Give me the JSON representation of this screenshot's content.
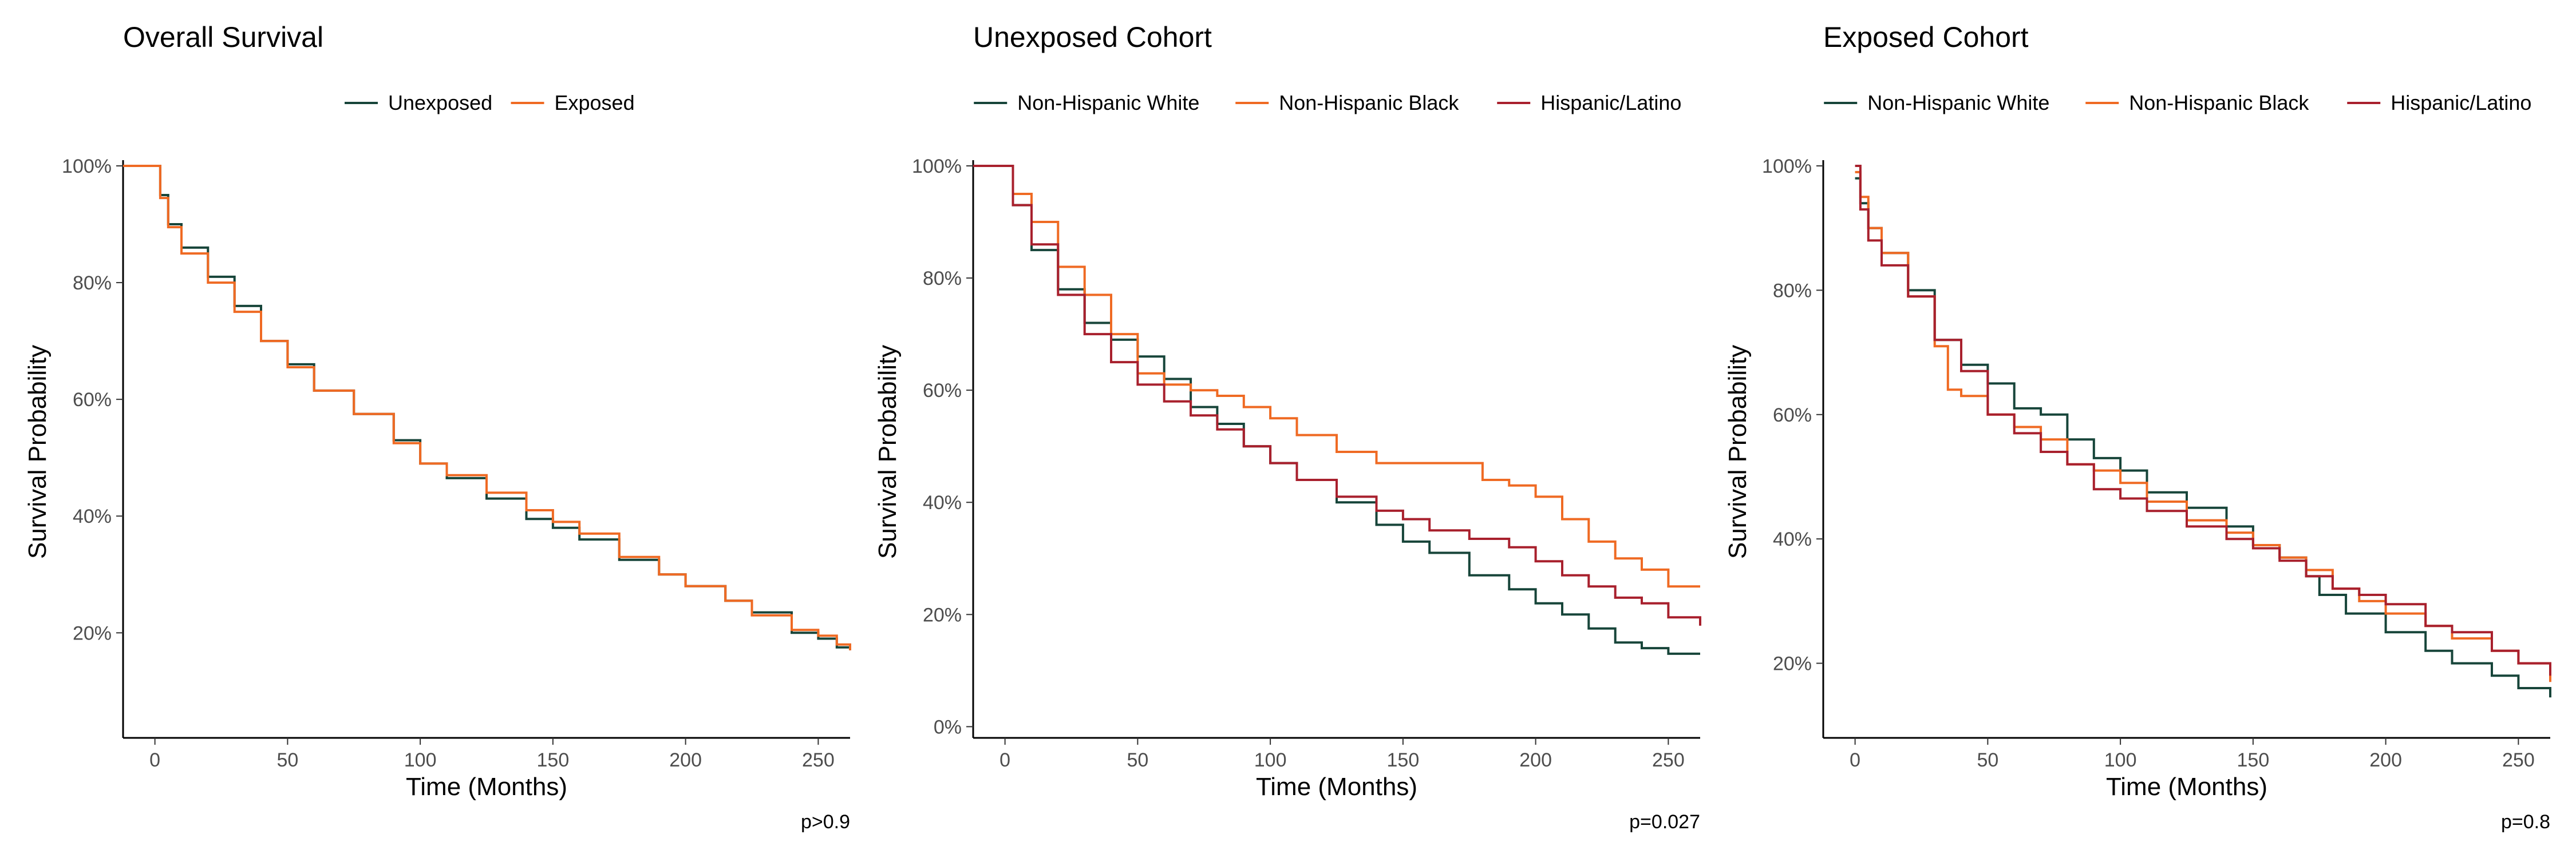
{
  "colors": {
    "dark_green": "#17453a",
    "orange": "#ef6a23",
    "dark_red": "#a8202d"
  },
  "chart_data": [
    {
      "type": "line",
      "title": "Overall Survival",
      "xlabel": "Time (Months)",
      "ylabel": "Survival Probability",
      "xlim": [
        -12,
        262
      ],
      "ylim": [
        0.02,
        1.0
      ],
      "xticks": [
        0,
        50,
        100,
        150,
        200,
        250
      ],
      "yticks": [
        0.2,
        0.4,
        0.6,
        0.8,
        1.0
      ],
      "ytick_labels": [
        "20%",
        "40%",
        "60%",
        "80%",
        "100%"
      ],
      "legend_position": "top",
      "pvalue": "p>0.9",
      "series": [
        {
          "name": "Unexposed",
          "color": "#17453a",
          "points": [
            [
              -12,
              1.0
            ],
            [
              0,
              1.0
            ],
            [
              2,
              0.95
            ],
            [
              5,
              0.9
            ],
            [
              10,
              0.86
            ],
            [
              20,
              0.81
            ],
            [
              30,
              0.76
            ],
            [
              40,
              0.7
            ],
            [
              50,
              0.66
            ],
            [
              60,
              0.615
            ],
            [
              75,
              0.575
            ],
            [
              90,
              0.53
            ],
            [
              100,
              0.49
            ],
            [
              110,
              0.465
            ],
            [
              125,
              0.43
            ],
            [
              140,
              0.395
            ],
            [
              150,
              0.38
            ],
            [
              160,
              0.36
            ],
            [
              175,
              0.325
            ],
            [
              190,
              0.3
            ],
            [
              200,
              0.28
            ],
            [
              215,
              0.255
            ],
            [
              225,
              0.235
            ],
            [
              240,
              0.2
            ],
            [
              250,
              0.19
            ],
            [
              257,
              0.175
            ],
            [
              262,
              0.17
            ]
          ]
        },
        {
          "name": "Exposed",
          "color": "#ef6a23",
          "points": [
            [
              -12,
              1.0
            ],
            [
              0,
              1.0
            ],
            [
              2,
              0.945
            ],
            [
              5,
              0.895
            ],
            [
              10,
              0.85
            ],
            [
              20,
              0.8
            ],
            [
              30,
              0.75
            ],
            [
              40,
              0.7
            ],
            [
              50,
              0.655
            ],
            [
              60,
              0.615
            ],
            [
              75,
              0.575
            ],
            [
              90,
              0.525
            ],
            [
              100,
              0.49
            ],
            [
              110,
              0.47
            ],
            [
              125,
              0.44
            ],
            [
              140,
              0.41
            ],
            [
              150,
              0.39
            ],
            [
              160,
              0.37
            ],
            [
              175,
              0.33
            ],
            [
              190,
              0.3
            ],
            [
              200,
              0.28
            ],
            [
              215,
              0.255
            ],
            [
              225,
              0.23
            ],
            [
              240,
              0.205
            ],
            [
              250,
              0.195
            ],
            [
              257,
              0.18
            ],
            [
              262,
              0.17
            ]
          ]
        }
      ]
    },
    {
      "type": "line",
      "title": "Unexposed Cohort",
      "xlabel": "Time (Months)",
      "ylabel": "Survival Probability",
      "xlim": [
        -12,
        262
      ],
      "ylim": [
        -0.02,
        1.0
      ],
      "xticks": [
        0,
        50,
        100,
        150,
        200,
        250
      ],
      "yticks": [
        0.0,
        0.2,
        0.4,
        0.6,
        0.8,
        1.0
      ],
      "ytick_labels": [
        "0%",
        "20%",
        "40%",
        "60%",
        "80%",
        "100%"
      ],
      "legend_position": "top",
      "pvalue": "p=0.027",
      "series": [
        {
          "name": "Non-Hispanic White",
          "color": "#17453a",
          "points": [
            [
              -12,
              1.0
            ],
            [
              0,
              1.0
            ],
            [
              3,
              0.93
            ],
            [
              10,
              0.85
            ],
            [
              20,
              0.78
            ],
            [
              30,
              0.72
            ],
            [
              40,
              0.69
            ],
            [
              50,
              0.66
            ],
            [
              60,
              0.62
            ],
            [
              70,
              0.57
            ],
            [
              80,
              0.54
            ],
            [
              90,
              0.5
            ],
            [
              100,
              0.47
            ],
            [
              110,
              0.44
            ],
            [
              125,
              0.4
            ],
            [
              140,
              0.36
            ],
            [
              150,
              0.33
            ],
            [
              160,
              0.31
            ],
            [
              175,
              0.27
            ],
            [
              190,
              0.245
            ],
            [
              200,
              0.22
            ],
            [
              210,
              0.2
            ],
            [
              220,
              0.175
            ],
            [
              230,
              0.15
            ],
            [
              240,
              0.14
            ],
            [
              250,
              0.13
            ],
            [
              262,
              0.13
            ]
          ]
        },
        {
          "name": "Non-Hispanic Black",
          "color": "#ef6a23",
          "points": [
            [
              -12,
              1.0
            ],
            [
              0,
              1.0
            ],
            [
              3,
              0.95
            ],
            [
              10,
              0.9
            ],
            [
              20,
              0.82
            ],
            [
              30,
              0.77
            ],
            [
              40,
              0.7
            ],
            [
              50,
              0.63
            ],
            [
              60,
              0.61
            ],
            [
              70,
              0.6
            ],
            [
              80,
              0.59
            ],
            [
              90,
              0.57
            ],
            [
              100,
              0.55
            ],
            [
              110,
              0.52
            ],
            [
              125,
              0.49
            ],
            [
              140,
              0.47
            ],
            [
              150,
              0.47
            ],
            [
              160,
              0.47
            ],
            [
              170,
              0.47
            ],
            [
              180,
              0.44
            ],
            [
              190,
              0.43
            ],
            [
              200,
              0.41
            ],
            [
              210,
              0.37
            ],
            [
              220,
              0.33
            ],
            [
              230,
              0.3
            ],
            [
              240,
              0.28
            ],
            [
              250,
              0.25
            ],
            [
              262,
              0.25
            ]
          ]
        },
        {
          "name": "Hispanic/Latino",
          "color": "#a8202d",
          "points": [
            [
              -12,
              1.0
            ],
            [
              0,
              1.0
            ],
            [
              3,
              0.93
            ],
            [
              10,
              0.86
            ],
            [
              20,
              0.77
            ],
            [
              30,
              0.7
            ],
            [
              40,
              0.65
            ],
            [
              50,
              0.61
            ],
            [
              60,
              0.58
            ],
            [
              70,
              0.555
            ],
            [
              80,
              0.53
            ],
            [
              90,
              0.5
            ],
            [
              100,
              0.47
            ],
            [
              110,
              0.44
            ],
            [
              125,
              0.41
            ],
            [
              140,
              0.385
            ],
            [
              150,
              0.37
            ],
            [
              160,
              0.35
            ],
            [
              175,
              0.335
            ],
            [
              190,
              0.32
            ],
            [
              200,
              0.295
            ],
            [
              210,
              0.27
            ],
            [
              220,
              0.25
            ],
            [
              230,
              0.23
            ],
            [
              240,
              0.22
            ],
            [
              250,
              0.195
            ],
            [
              262,
              0.18
            ]
          ]
        }
      ]
    },
    {
      "type": "line",
      "title": "Exposed Cohort",
      "xlabel": "Time (Months)",
      "ylabel": "Survival Probability",
      "xlim": [
        -12,
        262
      ],
      "ylim": [
        0.08,
        1.0
      ],
      "xticks": [
        0,
        50,
        100,
        150,
        200,
        250
      ],
      "yticks": [
        0.2,
        0.4,
        0.6,
        0.8,
        1.0
      ],
      "ytick_labels": [
        "20%",
        "40%",
        "60%",
        "80%",
        "100%"
      ],
      "legend_position": "top",
      "pvalue": "p=0.8",
      "series": [
        {
          "name": "Non-Hispanic White",
          "color": "#17453a",
          "points": [
            [
              0,
              0.98
            ],
            [
              2,
              0.94
            ],
            [
              5,
              0.9
            ],
            [
              10,
              0.86
            ],
            [
              20,
              0.8
            ],
            [
              30,
              0.72
            ],
            [
              40,
              0.68
            ],
            [
              50,
              0.65
            ],
            [
              60,
              0.61
            ],
            [
              70,
              0.6
            ],
            [
              80,
              0.56
            ],
            [
              90,
              0.53
            ],
            [
              100,
              0.51
            ],
            [
              110,
              0.475
            ],
            [
              125,
              0.45
            ],
            [
              140,
              0.42
            ],
            [
              150,
              0.39
            ],
            [
              160,
              0.37
            ],
            [
              170,
              0.34
            ],
            [
              175,
              0.31
            ],
            [
              185,
              0.28
            ],
            [
              200,
              0.25
            ],
            [
              215,
              0.22
            ],
            [
              225,
              0.2
            ],
            [
              240,
              0.18
            ],
            [
              250,
              0.16
            ],
            [
              262,
              0.145
            ]
          ]
        },
        {
          "name": "Non-Hispanic Black",
          "color": "#ef6a23",
          "points": [
            [
              0,
              0.99
            ],
            [
              2,
              0.95
            ],
            [
              5,
              0.9
            ],
            [
              10,
              0.86
            ],
            [
              20,
              0.79
            ],
            [
              30,
              0.71
            ],
            [
              35,
              0.64
            ],
            [
              40,
              0.63
            ],
            [
              50,
              0.6
            ],
            [
              60,
              0.58
            ],
            [
              70,
              0.56
            ],
            [
              80,
              0.52
            ],
            [
              90,
              0.51
            ],
            [
              100,
              0.49
            ],
            [
              110,
              0.46
            ],
            [
              125,
              0.43
            ],
            [
              140,
              0.41
            ],
            [
              150,
              0.39
            ],
            [
              160,
              0.37
            ],
            [
              170,
              0.35
            ],
            [
              180,
              0.32
            ],
            [
              190,
              0.3
            ],
            [
              200,
              0.28
            ],
            [
              215,
              0.26
            ],
            [
              225,
              0.24
            ],
            [
              240,
              0.22
            ],
            [
              250,
              0.2
            ],
            [
              262,
              0.17
            ]
          ]
        },
        {
          "name": "Hispanic/Latino",
          "color": "#a8202d",
          "points": [
            [
              0,
              1.0
            ],
            [
              2,
              0.93
            ],
            [
              5,
              0.88
            ],
            [
              10,
              0.84
            ],
            [
              20,
              0.79
            ],
            [
              30,
              0.72
            ],
            [
              40,
              0.67
            ],
            [
              50,
              0.6
            ],
            [
              60,
              0.57
            ],
            [
              70,
              0.54
            ],
            [
              80,
              0.52
            ],
            [
              90,
              0.48
            ],
            [
              100,
              0.465
            ],
            [
              110,
              0.445
            ],
            [
              125,
              0.42
            ],
            [
              140,
              0.4
            ],
            [
              150,
              0.385
            ],
            [
              160,
              0.365
            ],
            [
              170,
              0.34
            ],
            [
              180,
              0.32
            ],
            [
              190,
              0.31
            ],
            [
              200,
              0.295
            ],
            [
              215,
              0.26
            ],
            [
              225,
              0.25
            ],
            [
              240,
              0.22
            ],
            [
              250,
              0.2
            ],
            [
              262,
              0.18
            ]
          ]
        }
      ]
    }
  ]
}
